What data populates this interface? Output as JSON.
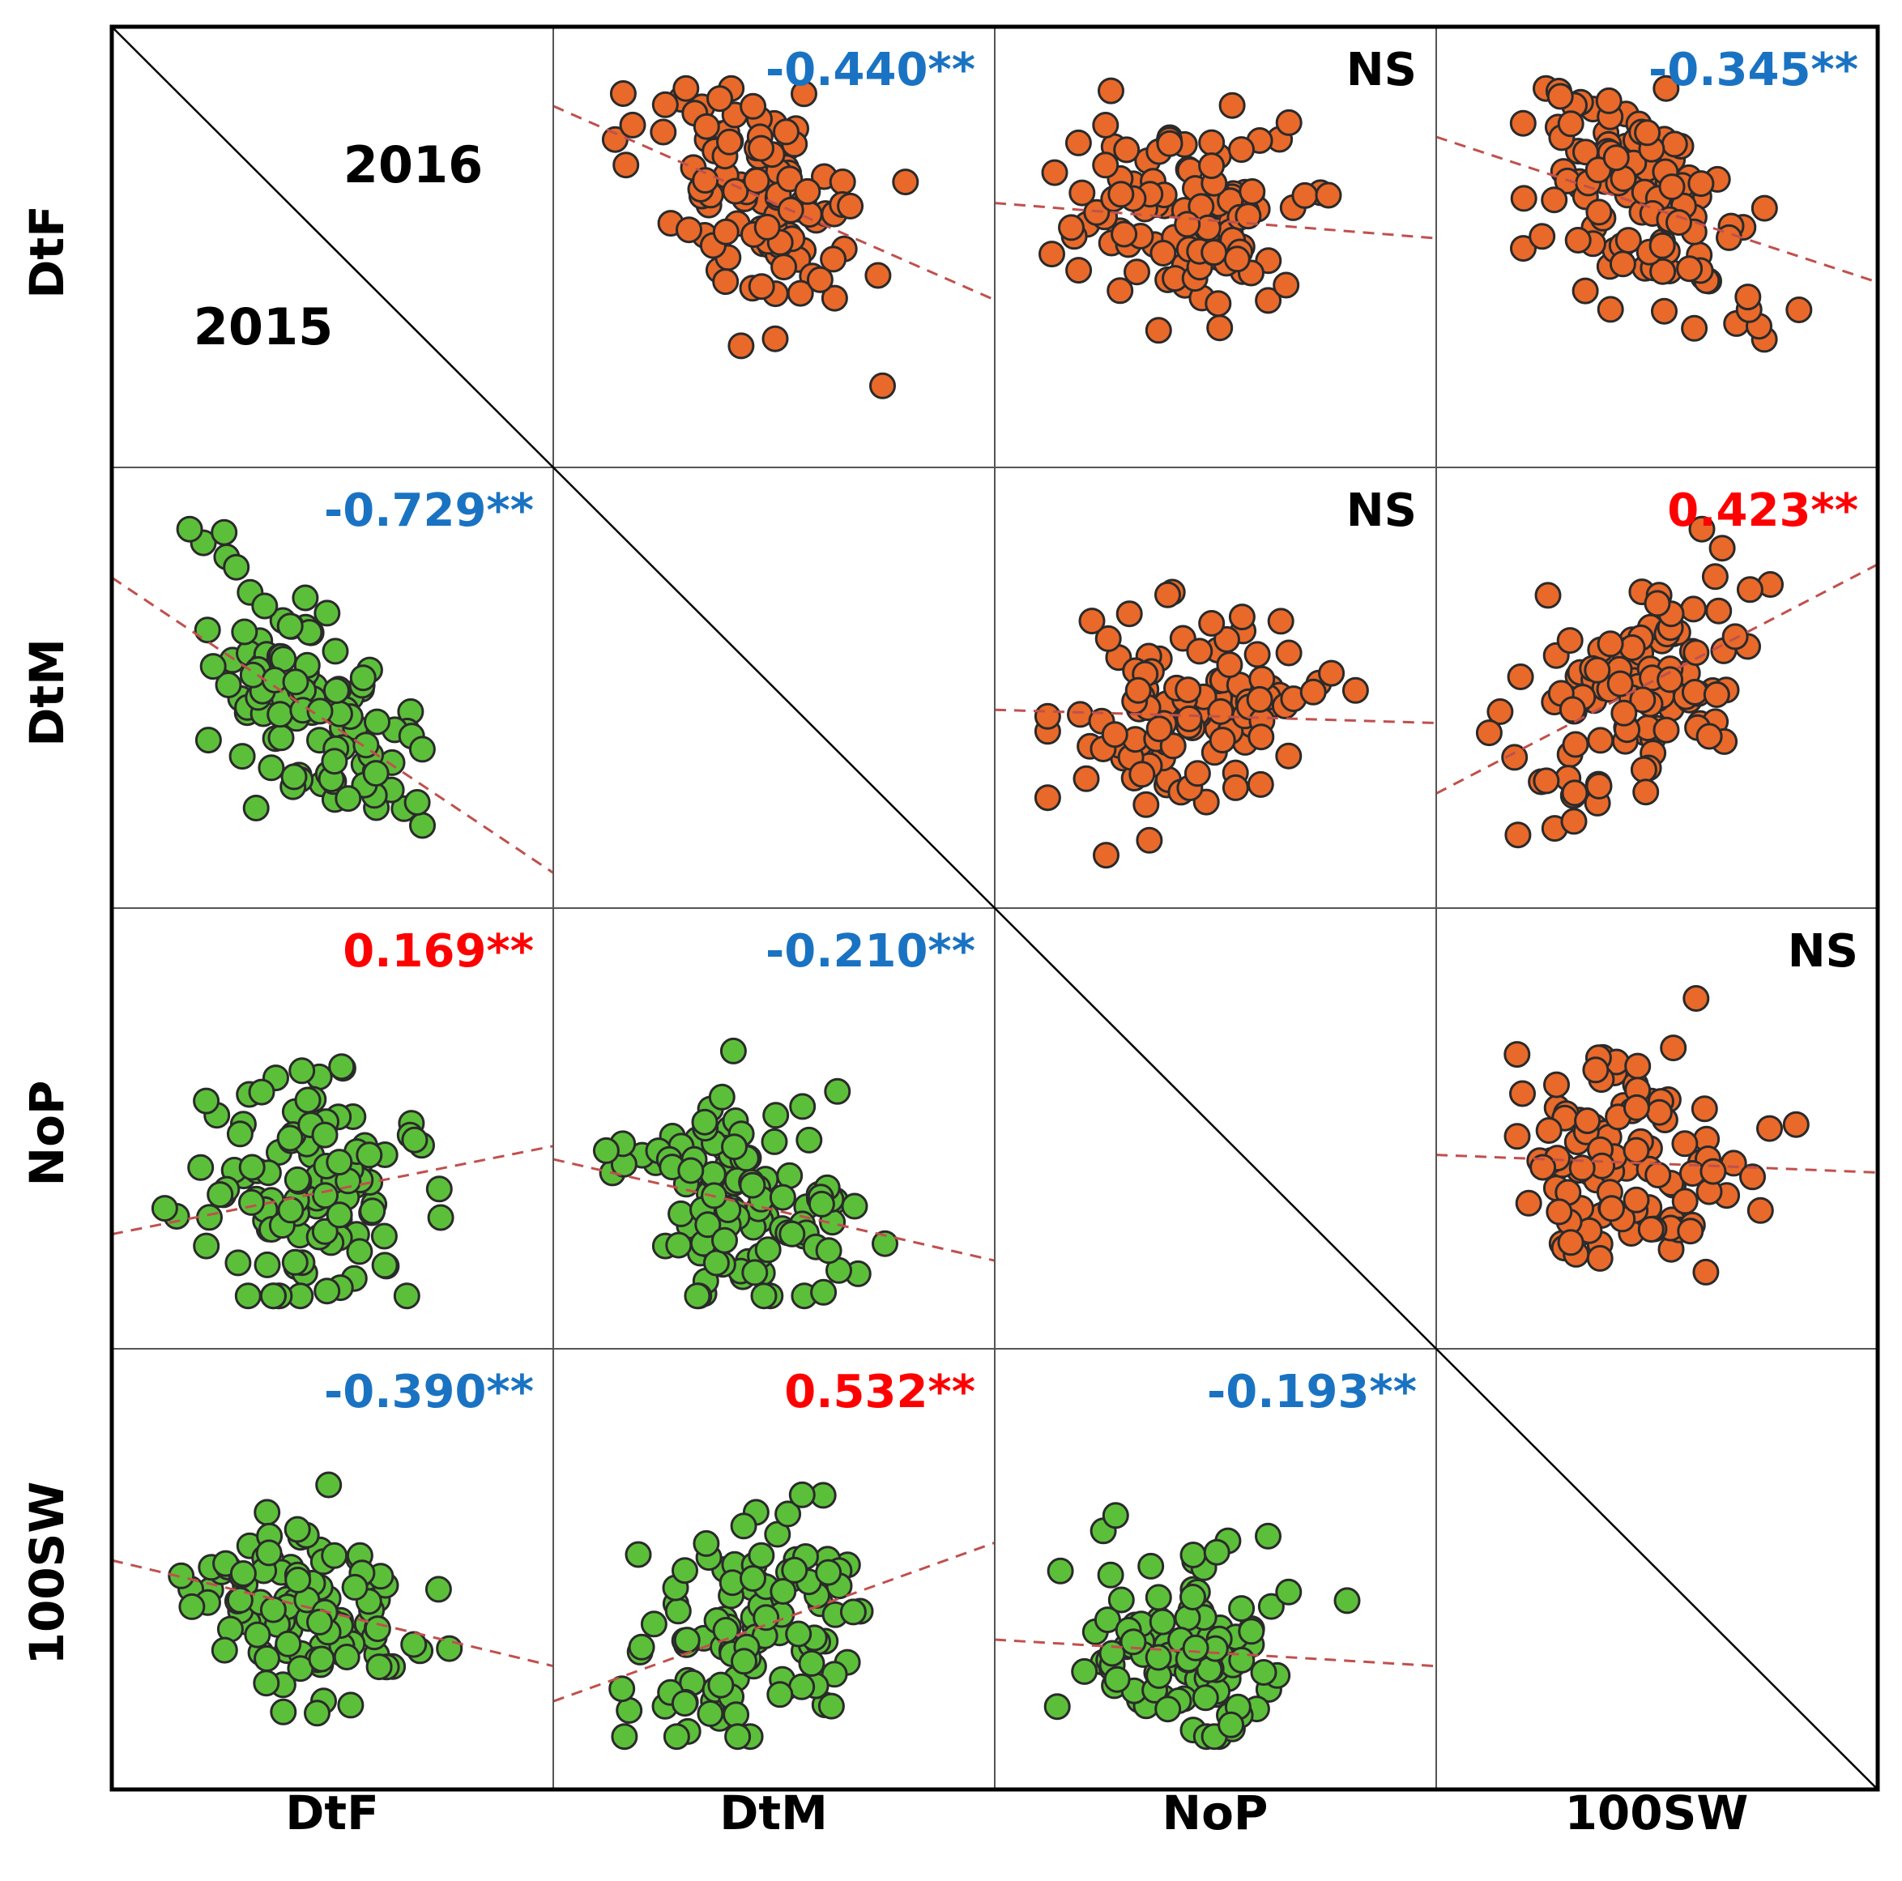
{
  "chart_data": {
    "type": "scatter",
    "title": "",
    "variables": [
      "DtF",
      "DtM",
      "NoP",
      "100SW"
    ],
    "x_axis_labels": [
      "DtF",
      "DtM",
      "NoP",
      "100SW"
    ],
    "y_axis_labels": [
      "DtF",
      "DtM",
      "NoP",
      "100SW"
    ],
    "upper_triangle_year": "2016",
    "lower_triangle_year": "2015",
    "colors": {
      "upper_points": "#e8692a",
      "lower_points": "#5cbf3a",
      "point_edge": "#2a2a2a",
      "trend_line": "#c0504d",
      "negative_corr": "#1a73c2",
      "positive_corr": "#ff0000",
      "ns": "#000000"
    },
    "panels": [
      {
        "id": "p01",
        "row": 0,
        "col": 1,
        "year": "2016",
        "label": "-0.440**",
        "sign": "neg",
        "trend": [
          0.0,
          0.18,
          1.0,
          0.62
        ],
        "seed": 11
      },
      {
        "id": "p02",
        "row": 0,
        "col": 2,
        "year": "2016",
        "label": "NS",
        "sign": "ns",
        "trend": [
          0.0,
          0.4,
          1.0,
          0.48
        ],
        "seed": 12
      },
      {
        "id": "p03",
        "row": 0,
        "col": 3,
        "year": "2016",
        "label": "-0.345**",
        "sign": "neg",
        "trend": [
          0.0,
          0.25,
          1.0,
          0.58
        ],
        "seed": 13
      },
      {
        "id": "p12",
        "row": 1,
        "col": 2,
        "year": "2016",
        "label": "NS",
        "sign": "ns",
        "trend": [
          0.0,
          0.55,
          1.0,
          0.58
        ],
        "seed": 14
      },
      {
        "id": "p13",
        "row": 1,
        "col": 3,
        "year": "2016",
        "label": "0.423**",
        "sign": "pos",
        "trend": [
          0.0,
          0.74,
          1.0,
          0.22
        ],
        "seed": 15
      },
      {
        "id": "p23",
        "row": 2,
        "col": 3,
        "year": "2016",
        "label": "NS",
        "sign": "ns",
        "trend": [
          0.0,
          0.56,
          1.0,
          0.6
        ],
        "seed": 16
      },
      {
        "id": "p10",
        "row": 1,
        "col": 0,
        "year": "2015",
        "label": "-0.729**",
        "sign": "neg",
        "trend": [
          0.0,
          0.25,
          1.0,
          0.92
        ],
        "seed": 21
      },
      {
        "id": "p20",
        "row": 2,
        "col": 0,
        "year": "2015",
        "label": "0.169**",
        "sign": "pos",
        "trend": [
          0.0,
          0.74,
          1.0,
          0.54
        ],
        "seed": 22
      },
      {
        "id": "p21",
        "row": 2,
        "col": 1,
        "year": "2015",
        "label": "-0.210**",
        "sign": "neg",
        "trend": [
          0.0,
          0.57,
          1.0,
          0.8
        ],
        "seed": 23
      },
      {
        "id": "p30",
        "row": 3,
        "col": 0,
        "year": "2015",
        "label": "-0.390**",
        "sign": "neg",
        "trend": [
          0.0,
          0.48,
          1.0,
          0.72
        ],
        "seed": 24
      },
      {
        "id": "p31",
        "row": 3,
        "col": 1,
        "year": "2015",
        "label": "0.532**",
        "sign": "pos",
        "trend": [
          0.0,
          0.8,
          1.0,
          0.44
        ],
        "seed": 25
      },
      {
        "id": "p32",
        "row": 3,
        "col": 2,
        "year": "2015",
        "label": "-0.193**",
        "sign": "neg",
        "trend": [
          0.0,
          0.66,
          1.0,
          0.72
        ],
        "seed": 26
      }
    ]
  }
}
